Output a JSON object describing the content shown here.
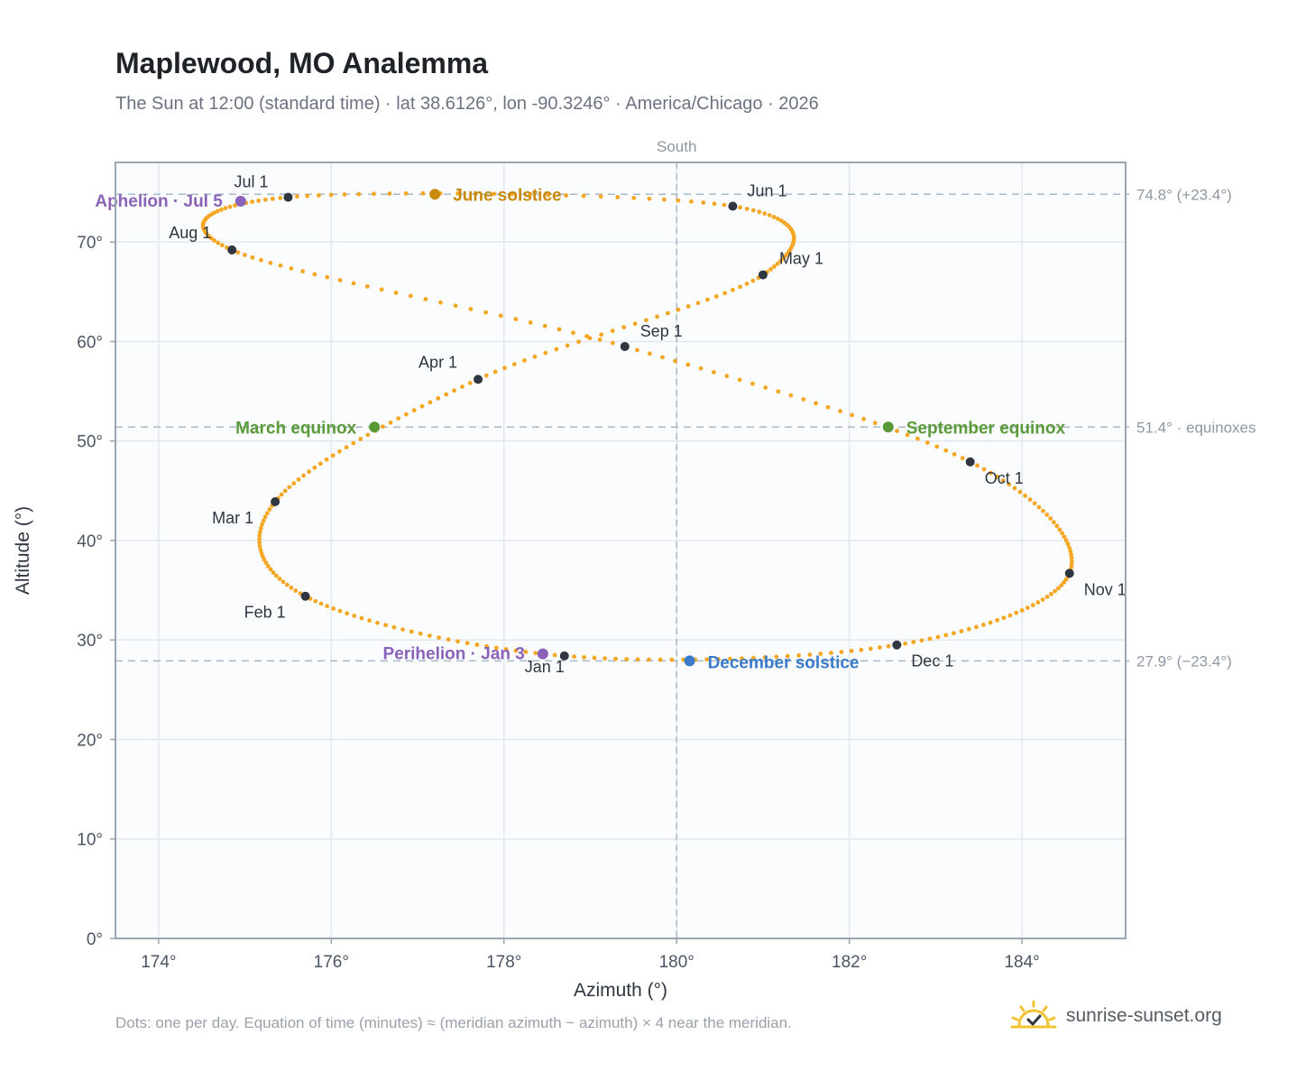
{
  "header": {
    "title": "Maplewood, MO Analemma",
    "subtitle": "The Sun at 12:00 (standard time) · lat 38.6126°, lon -90.3246° · America/Chicago · 2026"
  },
  "footer": {
    "note": "Dots: one per day. Equation of time (minutes) ≈ (meridian azimuth − azimuth) × 4 near the meridian.",
    "brand": "sunrise-sunset.org",
    "brand_icon": "sun-check-icon"
  },
  "colors": {
    "curve": "#f5a623",
    "month_dot": "#2f3640",
    "solstice_june": "#c98a0b",
    "equinox": "#5a9a38",
    "solstice_december": "#3a7bc8",
    "apsis": "#8a63b8",
    "reference_line": "#a9b8c6",
    "plot_bg": "#fafcfe",
    "grid": "#e3e8ee"
  },
  "chart_data": {
    "type": "scatter",
    "xlabel": "Azimuth (°)",
    "ylabel": "Altitude (°)",
    "xlim": [
      173.5,
      185.2
    ],
    "ylim": [
      0,
      78
    ],
    "xticks": [
      174,
      176,
      178,
      180,
      182,
      184
    ],
    "yticks": [
      0,
      10,
      20,
      30,
      40,
      50,
      60,
      70
    ],
    "tick_suffix": "°",
    "grid": true,
    "meridian": {
      "x": 180,
      "label": "South"
    },
    "reference_lines": [
      {
        "y": 74.8,
        "label": "74.8° (+23.4°)"
      },
      {
        "y": 51.4,
        "label": "51.4° · equinoxes"
      },
      {
        "y": 27.9,
        "label": "27.9° (−23.4°)"
      }
    ],
    "month_markers": [
      {
        "label": "Jan 1",
        "az": 178.7,
        "alt": 28.4
      },
      {
        "label": "Feb 1",
        "az": 175.7,
        "alt": 34.4
      },
      {
        "label": "Mar 1",
        "az": 175.35,
        "alt": 43.9
      },
      {
        "label": "Apr 1",
        "az": 177.7,
        "alt": 56.2
      },
      {
        "label": "May 1",
        "az": 181.0,
        "alt": 66.7
      },
      {
        "label": "Jun 1",
        "az": 180.65,
        "alt": 73.6
      },
      {
        "label": "Jul 1",
        "az": 175.5,
        "alt": 74.5
      },
      {
        "label": "Aug 1",
        "az": 174.85,
        "alt": 69.2
      },
      {
        "label": "Sep 1",
        "az": 179.4,
        "alt": 59.5
      },
      {
        "label": "Oct 1",
        "az": 183.4,
        "alt": 47.9
      },
      {
        "label": "Nov 1",
        "az": 184.55,
        "alt": 36.7
      },
      {
        "label": "Dec 1",
        "az": 182.55,
        "alt": 29.5
      }
    ],
    "events": [
      {
        "label": "June solstice",
        "az": 177.2,
        "alt": 74.8,
        "kind": "solstice_june"
      },
      {
        "label": "March equinox",
        "az": 176.5,
        "alt": 51.4,
        "kind": "equinox"
      },
      {
        "label": "September equinox",
        "az": 182.45,
        "alt": 51.4,
        "kind": "equinox"
      },
      {
        "label": "December solstice",
        "az": 180.15,
        "alt": 27.9,
        "kind": "solstice_december"
      },
      {
        "label": "Aphelion · Jul 5",
        "az": 174.95,
        "alt": 74.1,
        "kind": "apsis"
      },
      {
        "label": "Perihelion · Jan 3",
        "az": 178.45,
        "alt": 28.6,
        "kind": "apsis"
      }
    ]
  }
}
